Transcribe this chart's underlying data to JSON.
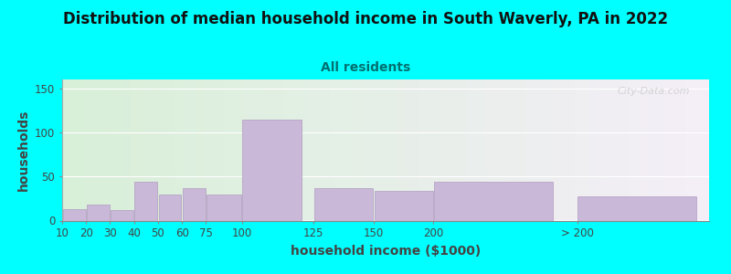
{
  "title": "Distribution of median household income in South Waverly, PA in 2022",
  "subtitle": "All residents",
  "xlabel": "household income ($1000)",
  "ylabel": "households",
  "background_color": "#00FFFF",
  "plot_bg_gradient_left": "#d8f0d8",
  "plot_bg_gradient_right": "#f5eef8",
  "bar_color": "#c9b8d8",
  "bar_edge_color": "#b09cc0",
  "bar_labels": [
    "10",
    "20",
    "30",
    "40",
    "50",
    "60",
    "75",
    "100",
    "125",
    "150",
    "200",
    "> 200"
  ],
  "bar_values": [
    13,
    18,
    12,
    44,
    30,
    37,
    30,
    114,
    37,
    34,
    44,
    27
  ],
  "bar_widths": [
    10,
    10,
    10,
    10,
    10,
    10,
    15,
    25,
    25,
    25,
    50,
    50
  ],
  "bar_lefts": [
    5,
    15,
    25,
    35,
    45,
    55,
    65,
    80,
    110,
    135,
    160,
    220
  ],
  "ylim": [
    0,
    160
  ],
  "yticks": [
    0,
    50,
    100,
    150
  ],
  "watermark": "City-Data.com",
  "title_fontsize": 12,
  "subtitle_fontsize": 10,
  "axis_label_fontsize": 10,
  "tick_fontsize": 8.5,
  "subtitle_color": "#007070",
  "title_color": "#111111",
  "axis_label_color": "#444444",
  "tick_color": "#444444"
}
